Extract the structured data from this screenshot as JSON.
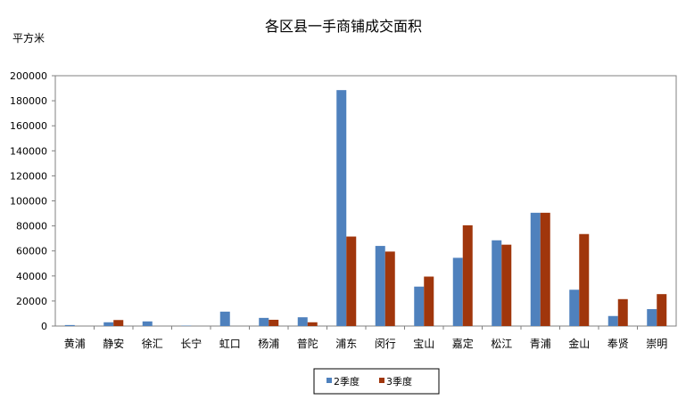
{
  "chart_data": {
    "type": "bar",
    "title": "各区县一手商铺成交面积",
    "ylabel": "平方米",
    "xlabel": "",
    "ylim": [
      0,
      200000
    ],
    "yticks": [
      0,
      20000,
      40000,
      60000,
      80000,
      100000,
      120000,
      140000,
      160000,
      180000,
      200000
    ],
    "grid": false,
    "legend_position": "bottom-right",
    "categories": [
      "黄浦",
      "静安",
      "徐汇",
      "长宁",
      "虹口",
      "杨浦",
      "普陀",
      "浦东",
      "闵行",
      "宝山",
      "嘉定",
      "松江",
      "青浦",
      "金山",
      "奉贤",
      "崇明"
    ],
    "series": [
      {
        "name": "2季度",
        "color": "#4f81bd",
        "values": [
          800,
          3000,
          3700,
          300,
          11500,
          6500,
          7000,
          188500,
          64000,
          31500,
          54500,
          68500,
          90500,
          29000,
          8000,
          13500
        ]
      },
      {
        "name": "3季度",
        "color": "#a0360c",
        "values": [
          0,
          4800,
          0,
          0,
          0,
          5000,
          3000,
          71500,
          59500,
          39500,
          80500,
          65000,
          90500,
          73500,
          21500,
          25500
        ]
      }
    ]
  }
}
